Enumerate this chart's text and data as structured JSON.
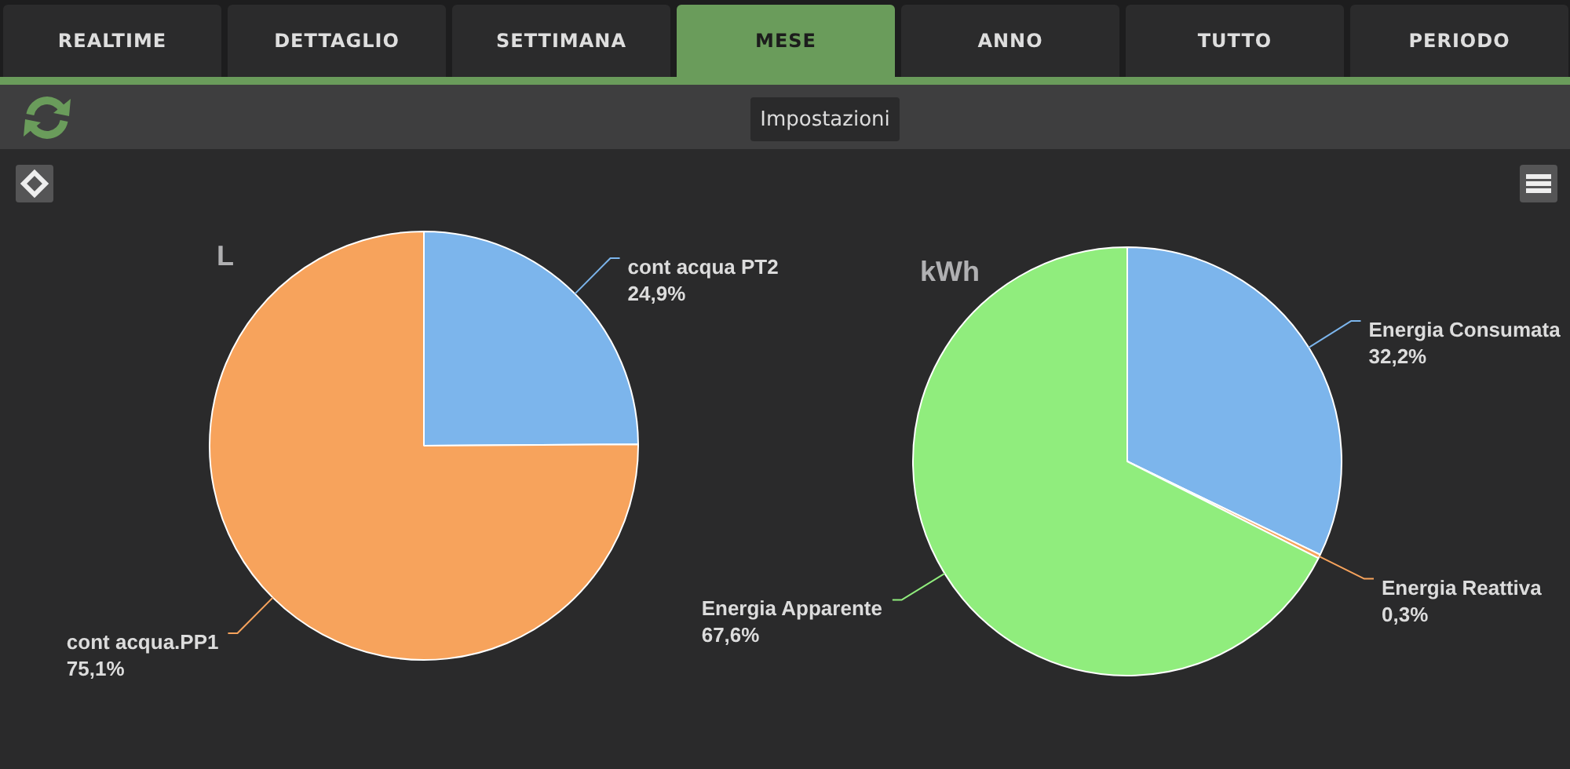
{
  "chart_data": [
    {
      "type": "other",
      "annotations": [
        "REALTIME",
        "DETTAGLIO",
        "SETTIMANA",
        "MESE",
        "ANNO",
        "TUTTO",
        "PERIODO",
        "Impostazioni"
      ]
    },
    {
      "type": "pie",
      "title": "L",
      "categories": [
        "cont acqua PT2",
        "cont acqua.PP1"
      ],
      "values": [
        24.9,
        75.1
      ],
      "colors": [
        "#7cb5ec",
        "#f7a35c"
      ],
      "value_labels": [
        "24,9%",
        "75,1%"
      ]
    },
    {
      "type": "pie",
      "title": "kWh",
      "categories": [
        "Energia Consumata",
        "Energia Reattiva",
        "Energia Apparente"
      ],
      "values": [
        32.2,
        0.3,
        67.6
      ],
      "colors": [
        "#7cb5ec",
        "#f7a35c",
        "#90ed7d"
      ],
      "value_labels": [
        "32,2%",
        "0,3%",
        "67,6%"
      ]
    }
  ]
}
